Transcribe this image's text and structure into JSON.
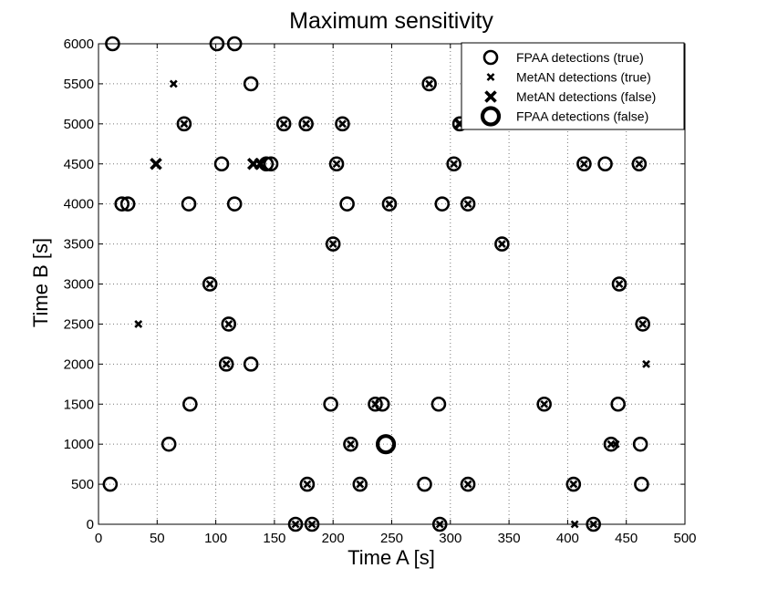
{
  "chart_data": {
    "type": "scatter",
    "title": "Maximum sensitivity",
    "xlabel": "Time A [s]",
    "ylabel": "Time B [s]",
    "xlim": [
      0,
      500
    ],
    "ylim": [
      0,
      6000
    ],
    "xticks": [
      0,
      50,
      100,
      150,
      200,
      250,
      300,
      350,
      400,
      450,
      500
    ],
    "yticks": [
      0,
      500,
      1000,
      1500,
      2000,
      2500,
      3000,
      3500,
      4000,
      4500,
      5000,
      5500,
      6000
    ],
    "grid": true,
    "legend_position": "top-right",
    "series": [
      {
        "name": "FPAA detections (true)",
        "marker": "small-circle",
        "points": [
          [
            12,
            6000
          ],
          [
            101,
            6000
          ],
          [
            116,
            6000
          ],
          [
            130,
            5500
          ],
          [
            282,
            5500
          ],
          [
            73,
            5000
          ],
          [
            158,
            5000
          ],
          [
            177,
            5000
          ],
          [
            208,
            5000
          ],
          [
            308,
            5000
          ],
          [
            105,
            4500
          ],
          [
            143,
            4500
          ],
          [
            147,
            4500
          ],
          [
            203,
            4500
          ],
          [
            303,
            4500
          ],
          [
            414,
            4500
          ],
          [
            432,
            4500
          ],
          [
            461,
            4500
          ],
          [
            20,
            4000
          ],
          [
            25,
            4000
          ],
          [
            77,
            4000
          ],
          [
            116,
            4000
          ],
          [
            212,
            4000
          ],
          [
            248,
            4000
          ],
          [
            293,
            4000
          ],
          [
            315,
            4000
          ],
          [
            200,
            3500
          ],
          [
            344,
            3500
          ],
          [
            95,
            3000
          ],
          [
            444,
            3000
          ],
          [
            111,
            2500
          ],
          [
            464,
            2500
          ],
          [
            109,
            2000
          ],
          [
            130,
            2000
          ],
          [
            78,
            1500
          ],
          [
            198,
            1500
          ],
          [
            236,
            1500
          ],
          [
            242,
            1500
          ],
          [
            290,
            1500
          ],
          [
            380,
            1500
          ],
          [
            443,
            1500
          ],
          [
            60,
            1000
          ],
          [
            215,
            1000
          ],
          [
            437,
            1000
          ],
          [
            462,
            1000
          ],
          [
            10,
            500
          ],
          [
            178,
            500
          ],
          [
            223,
            500
          ],
          [
            278,
            500
          ],
          [
            315,
            500
          ],
          [
            405,
            500
          ],
          [
            463,
            500
          ],
          [
            168,
            0
          ],
          [
            182,
            0
          ],
          [
            291,
            0
          ],
          [
            422,
            0
          ]
        ]
      },
      {
        "name": "MetAN detections (true)",
        "marker": "small-x",
        "points": [
          [
            64,
            5500
          ],
          [
            282,
            5500
          ],
          [
            73,
            5000
          ],
          [
            158,
            5000
          ],
          [
            177,
            5000
          ],
          [
            208,
            5000
          ],
          [
            203,
            4500
          ],
          [
            303,
            4500
          ],
          [
            414,
            4500
          ],
          [
            461,
            4500
          ],
          [
            248,
            4000
          ],
          [
            315,
            4000
          ],
          [
            200,
            3500
          ],
          [
            344,
            3500
          ],
          [
            95,
            3000
          ],
          [
            444,
            3000
          ],
          [
            34,
            2500
          ],
          [
            111,
            2500
          ],
          [
            464,
            2500
          ],
          [
            109,
            2000
          ],
          [
            467,
            2000
          ],
          [
            236,
            1500
          ],
          [
            380,
            1500
          ],
          [
            215,
            1000
          ],
          [
            437,
            1000
          ],
          [
            441,
            1000
          ],
          [
            178,
            500
          ],
          [
            223,
            500
          ],
          [
            315,
            500
          ],
          [
            405,
            500
          ],
          [
            168,
            0
          ],
          [
            182,
            0
          ],
          [
            291,
            0
          ],
          [
            406,
            0
          ],
          [
            422,
            0
          ]
        ]
      },
      {
        "name": "MetAN detections (false)",
        "marker": "large-x",
        "points": [
          [
            49,
            4500
          ],
          [
            132,
            4500
          ],
          [
            138,
            4500
          ],
          [
            308,
            5000
          ]
        ]
      },
      {
        "name": "FPAA detections (false)",
        "marker": "large-circle",
        "points": [
          [
            245,
            1000
          ]
        ]
      }
    ]
  }
}
